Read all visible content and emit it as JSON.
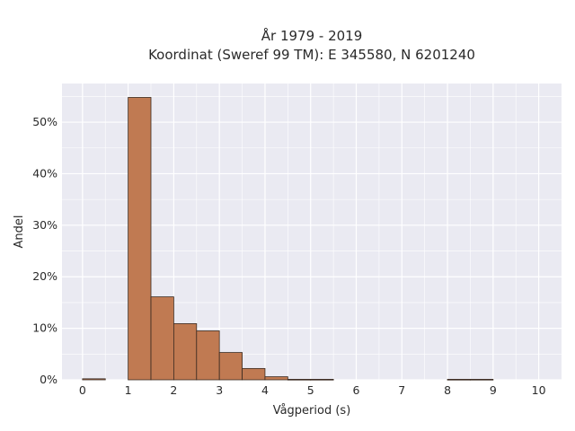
{
  "chart_data": {
    "type": "bar",
    "title_line1": "År 1979 - 2019",
    "title_line2": "Koordinat (Sweref 99 TM): E 345580, N 6201240",
    "xlabel": "Vågperiod (s)",
    "ylabel": "Andel",
    "bin_width": 0.5,
    "bins": [
      {
        "x0": 0.0,
        "value": 0.2
      },
      {
        "x0": 0.5,
        "value": 0.0
      },
      {
        "x0": 1.0,
        "value": 54.8
      },
      {
        "x0": 1.5,
        "value": 16.1
      },
      {
        "x0": 2.0,
        "value": 10.9
      },
      {
        "x0": 2.5,
        "value": 9.5
      },
      {
        "x0": 3.0,
        "value": 5.3
      },
      {
        "x0": 3.5,
        "value": 2.2
      },
      {
        "x0": 4.0,
        "value": 0.6
      },
      {
        "x0": 4.5,
        "value": 0.1
      },
      {
        "x0": 5.0,
        "value": 0.1
      },
      {
        "x0": 5.5,
        "value": 0.0
      },
      {
        "x0": 6.0,
        "value": 0.0
      },
      {
        "x0": 6.5,
        "value": 0.0
      },
      {
        "x0": 7.0,
        "value": 0.0
      },
      {
        "x0": 7.5,
        "value": 0.0
      },
      {
        "x0": 8.0,
        "value": 0.1
      },
      {
        "x0": 8.5,
        "value": 0.1
      },
      {
        "x0": 9.0,
        "value": 0.0
      },
      {
        "x0": 9.5,
        "value": 0.0
      }
    ],
    "xlim": [
      -0.45,
      10.5
    ],
    "ylim": [
      0,
      57.5
    ],
    "x_ticks": [
      0,
      1,
      2,
      3,
      4,
      5,
      6,
      7,
      8,
      9,
      10
    ],
    "x_tick_labels": [
      "0",
      "1",
      "2",
      "3",
      "4",
      "5",
      "6",
      "7",
      "8",
      "9",
      "10"
    ],
    "y_ticks": [
      0,
      10,
      20,
      30,
      40,
      50
    ],
    "y_tick_labels": [
      "0%",
      "10%",
      "20%",
      "30%",
      "40%",
      "50%"
    ],
    "grid": true,
    "colors": {
      "bar_fill": "#c07a52",
      "bar_edge": "#3a2a20",
      "plot_bg": "#eaeaf2",
      "grid": "#ffffff"
    }
  }
}
